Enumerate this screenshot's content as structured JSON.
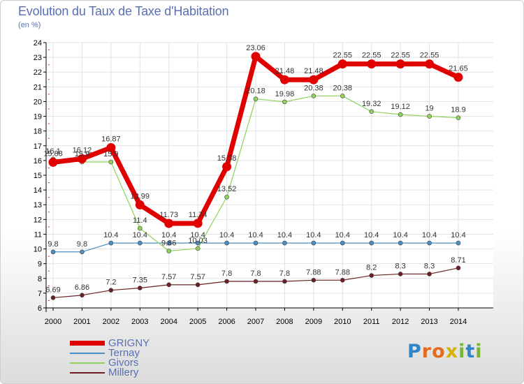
{
  "title": "Evolution du Taux de Taxe d'Habitation",
  "subtitle": "(en %)",
  "logo": {
    "letters": [
      "P",
      "r",
      "o",
      "x",
      "i",
      "t",
      "i"
    ],
    "colors": [
      "#2f86c9",
      "#e46b1e",
      "#e46b1e",
      "#d6b300",
      "#78b533",
      "#2f86c9",
      "#78b533"
    ]
  },
  "chart_data": {
    "type": "line",
    "x": [
      "2000",
      "2001",
      "2002",
      "2003",
      "2004",
      "2005",
      "2006",
      "2007",
      "2008",
      "2009",
      "2010",
      "2011",
      "2012",
      "2013",
      "2014"
    ],
    "ylim": [
      6,
      24
    ],
    "yticks": [
      "6",
      "7",
      "8",
      "9",
      "10",
      "11",
      "12",
      "13",
      "14",
      "15",
      "16",
      "17",
      "18",
      "19",
      "20",
      "21",
      "22",
      "23",
      "24"
    ],
    "grid": true,
    "legend_position": "bottom-left",
    "series": [
      {
        "name": "Millery",
        "color": "#6b1f24",
        "values": [
          6.69,
          6.86,
          7.2,
          7.35,
          7.57,
          7.57,
          7.8,
          7.8,
          7.8,
          7.88,
          7.88,
          8.2,
          8.3,
          8.3,
          8.71
        ],
        "labels": [
          "6.69",
          "6.86",
          "7.2",
          "7.35",
          "7.57",
          "7.57",
          "7.8",
          "7.8",
          "7.8",
          "7.88",
          "7.88",
          "8.2",
          "8.3",
          "8.3",
          "8.71"
        ]
      },
      {
        "name": "Ternay",
        "color": "#4a8fc5",
        "values": [
          9.8,
          9.8,
          10.4,
          10.4,
          10.4,
          10.4,
          10.4,
          10.4,
          10.4,
          10.4,
          10.4,
          10.4,
          10.4,
          10.4,
          10.4
        ],
        "labels": [
          "9.8",
          "9.8",
          "10.4",
          "10.4",
          "10.4",
          "10.4",
          "10.4",
          "10.4",
          "10.4",
          "10.4",
          "10.4",
          "10.4",
          "10.4",
          "10.4",
          "10.4"
        ]
      },
      {
        "name": "Givors",
        "color": "#8fd35a",
        "values": [
          16.1,
          15.9,
          15.9,
          11.4,
          9.86,
          10.03,
          13.52,
          20.18,
          19.98,
          20.38,
          20.38,
          19.32,
          19.12,
          19,
          18.9
        ],
        "labels": [
          "16.1",
          "15.9",
          "15.9",
          "11.4",
          "9.86",
          "10.03",
          "13.52",
          "20.18",
          "19.98",
          "20.38",
          "20.38",
          "19.32",
          "19.12",
          "19",
          "18.9"
        ]
      },
      {
        "name": "GRIGNY",
        "color": "#e00000",
        "values": [
          15.88,
          16.12,
          16.87,
          12.99,
          11.73,
          11.74,
          15.58,
          23.06,
          21.48,
          21.48,
          22.55,
          22.55,
          22.55,
          22.55,
          21.65
        ],
        "labels": [
          "15.88",
          "16.12",
          "16.87",
          "12.99",
          "11.73",
          "11.74",
          "15.58",
          "23.06",
          "21.48",
          "21.48",
          "22.55",
          "22.55",
          "22.55",
          "22.55",
          "21.65"
        ]
      }
    ],
    "legend_order": [
      "GRIGNY",
      "Ternay",
      "Givors",
      "Millery"
    ]
  }
}
